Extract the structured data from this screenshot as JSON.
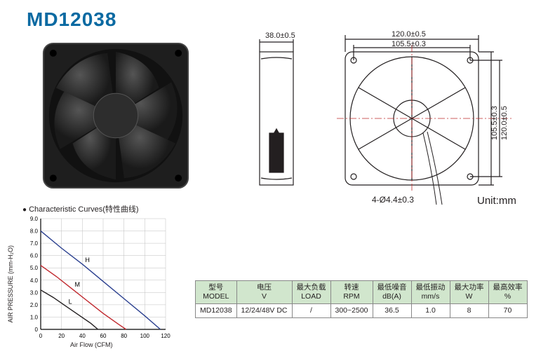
{
  "title": "MD12038",
  "unit_label": "Unit:mm",
  "hole_label": "4-Ø4.4±0.3",
  "curves_label": "Characteristic Curves(特性曲线)",
  "axis": {
    "y_label": "AIR PRESSURE (mm-H₂O)",
    "x_label": "Air Flow (CFM)"
  },
  "dimensions": {
    "depth": "38.0±0.5",
    "outer_w": "120.0±0.5",
    "inner_w": "105.5±0.3",
    "outer_h": "120.0±0.5",
    "inner_h": "105.5±0.3"
  },
  "chart": {
    "y_ticks": [
      "9.0",
      "8.0",
      "7.0",
      "6.0",
      "5.0",
      "4.0",
      "3.0",
      "2.0",
      "1.0",
      "0"
    ],
    "x_ticks": [
      "0",
      "20",
      "40",
      "60",
      "80",
      "100",
      "120"
    ],
    "grid_color": "#bfbfbf",
    "axis_color": "#000000",
    "curves": [
      {
        "label": "H",
        "color": "#2a3f8f",
        "points": [
          [
            0,
            8.0
          ],
          [
            20,
            6.6
          ],
          [
            40,
            5.3
          ],
          [
            60,
            3.9
          ],
          [
            80,
            2.5
          ],
          [
            100,
            1.1
          ],
          [
            115,
            0
          ]
        ]
      },
      {
        "label": "M",
        "color": "#c0272d",
        "points": [
          [
            0,
            5.2
          ],
          [
            15,
            4.3
          ],
          [
            30,
            3.3
          ],
          [
            45,
            2.3
          ],
          [
            60,
            1.3
          ],
          [
            75,
            0.4
          ],
          [
            82,
            0
          ]
        ]
      },
      {
        "label": "L",
        "color": "#231f20",
        "points": [
          [
            0,
            3.2
          ],
          [
            12,
            2.6
          ],
          [
            24,
            1.9
          ],
          [
            36,
            1.2
          ],
          [
            48,
            0.5
          ],
          [
            55,
            0
          ]
        ]
      }
    ]
  },
  "table": {
    "headers": [
      {
        "cn": "型号",
        "en": "MODEL"
      },
      {
        "cn": "电压",
        "en": "V"
      },
      {
        "cn": "最大负载",
        "en": "LOAD"
      },
      {
        "cn": "转速",
        "en": "RPM"
      },
      {
        "cn": "最低噪音",
        "en": "dB(A)"
      },
      {
        "cn": "最低振动",
        "en": "mm/s"
      },
      {
        "cn": "最大功率",
        "en": "W"
      },
      {
        "cn": "最高效率",
        "en": "%"
      }
    ],
    "row": [
      "MD12038",
      "12/24/48V DC",
      "/",
      "300~2500",
      "36.5",
      "1.0",
      "8",
      "70"
    ]
  },
  "colors": {
    "title": "#0b6aa2",
    "table_header_bg": "#d1e6cd",
    "fan_body": "#2a2a2a",
    "diagram_line": "#231f20",
    "centerline": "#bf2a2a"
  }
}
